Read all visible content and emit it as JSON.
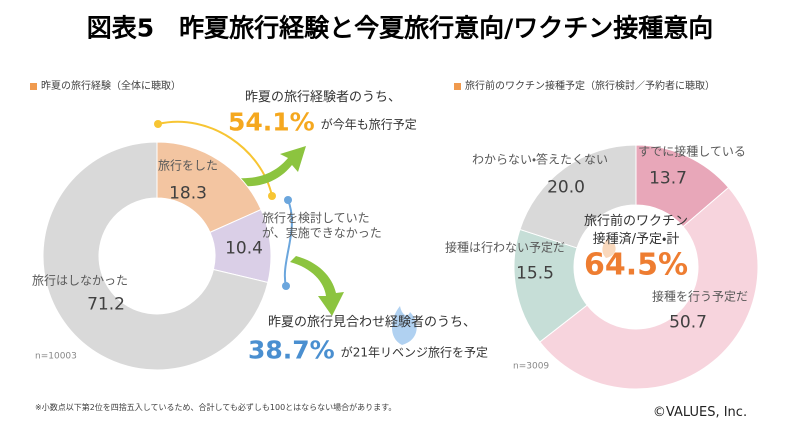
{
  "title": "図表5　昨夏旅行経験と今夏旅行意向/ワクチン接種意向",
  "chart_data": [
    {
      "type": "pie",
      "donut": true,
      "subtitle": "昨夏の旅行経験（全体に聴取）",
      "categories": [
        "旅行をした",
        "旅行を検討していたが、実施できなかった",
        "旅行はしなかった"
      ],
      "values": [
        18.3,
        10.4,
        71.2
      ],
      "colors": [
        "#f3c5a1",
        "#dacfe7",
        "#d9d9d9"
      ],
      "note": "n=10003",
      "annotations": [
        {
          "before": "昨夏の旅行経験者のうち、",
          "highlight": "54.1%",
          "after": "が今年も旅行予定",
          "color": "#f5a81f"
        },
        {
          "before": "昨夏の旅行見合わせ経験者のうち、",
          "highlight": "38.7%",
          "after": "が21年リベンジ旅行を予定",
          "color": "#4a8fd0"
        }
      ]
    },
    {
      "type": "pie",
      "donut": true,
      "subtitle": "旅行前のワクチン接種予定（旅行検討／予約者に聴取）",
      "categories": [
        "すでに接種している",
        "接種を行う予定だ",
        "接種は行わない予定だ",
        "わからない・答えたくない"
      ],
      "values": [
        13.7,
        50.7,
        15.5,
        20.0
      ],
      "value_labels": [
        "13.7",
        "50.7",
        "15.5",
        "20.0"
      ],
      "colors": [
        "#e8a7b9",
        "#f7d4dd",
        "#c6ded7",
        "#d9d9d9"
      ],
      "note": "n=3009",
      "center_label": [
        "旅行前のワクチン",
        "接種済/予定・計"
      ],
      "center_value": "64.5%",
      "center_color": "#ee7d31"
    }
  ],
  "footnote": "※小数点以下第2位を四捨五入しているため、合計しても必ずしも100とはならない場合があります。",
  "copyright": "©VALUES, Inc."
}
